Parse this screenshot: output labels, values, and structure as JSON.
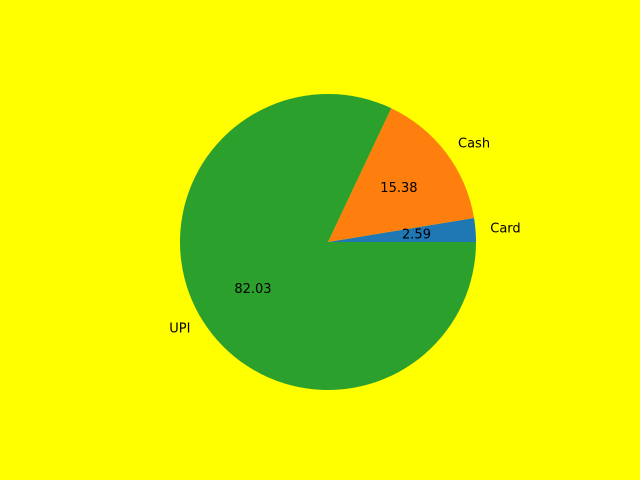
{
  "chart_data": {
    "type": "pie",
    "title": "",
    "labels": [
      "Card",
      "Cash",
      "UPI"
    ],
    "values": [
      2.59,
      15.38,
      82.03
    ],
    "value_labels": [
      "2.59",
      "15.38",
      "82.03"
    ],
    "colors": [
      "#1f77b4",
      "#ff7f0e",
      "#2ca02c"
    ],
    "start_angle_deg": 0,
    "direction": "counterclockwise",
    "background_color": "#ffff00",
    "legend": "none"
  }
}
